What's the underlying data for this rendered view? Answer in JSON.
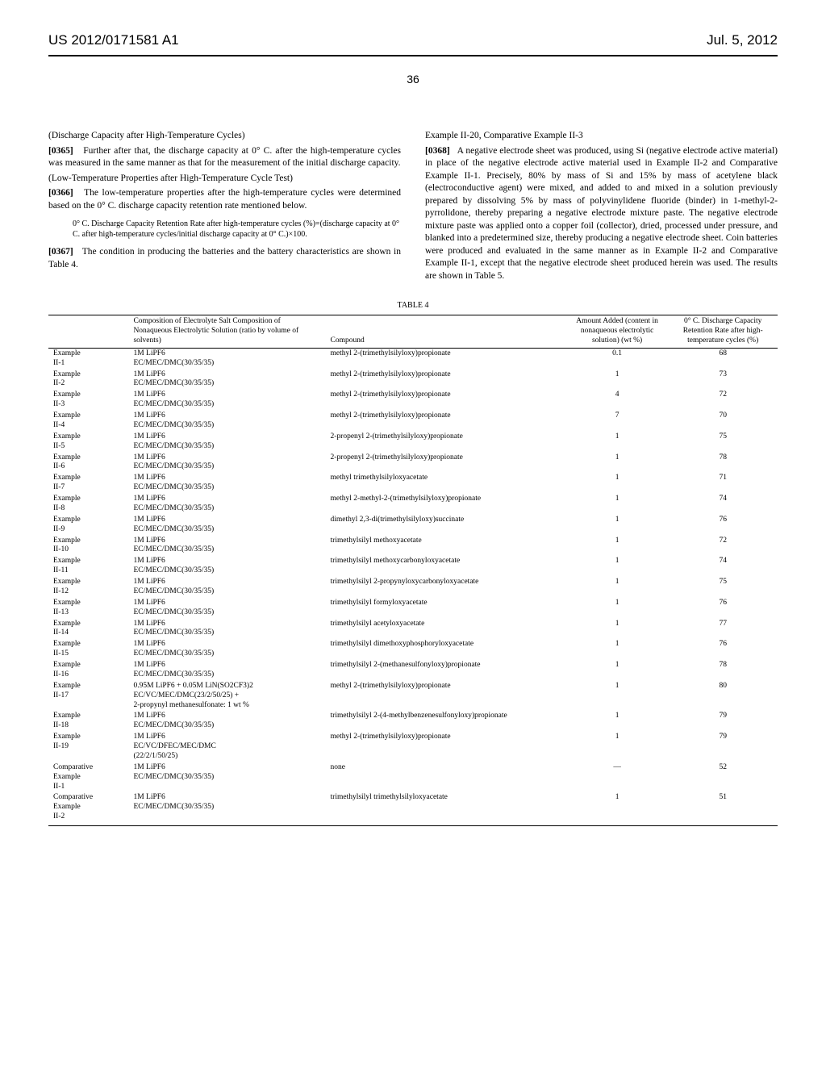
{
  "header": {
    "pub_number": "US 2012/0171581 A1",
    "pub_date": "Jul. 5, 2012",
    "page_number": "36"
  },
  "left_column": {
    "heading1": "(Discharge Capacity after High-Temperature Cycles)",
    "p0365_num": "[0365]",
    "p0365_text": "Further after that, the discharge capacity at 0° C. after the high-temperature cycles was measured in the same manner as that for the measurement of the initial discharge capacity.",
    "heading2": "(Low-Temperature Properties after High-Temperature Cycle Test)",
    "p0366_num": "[0366]",
    "p0366_text": "The low-temperature properties after the high-temperature cycles were determined based on the 0° C. discharge capacity retention rate mentioned below.",
    "formula": "0° C. Discharge Capacity Retention Rate after high-temperature cycles (%)=(discharge capacity at 0° C. after high-temperature cycles/initial discharge capacity at 0° C.)×100.",
    "p0367_num": "[0367]",
    "p0367_text": "The condition in producing the batteries and the battery characteristics are shown in Table 4."
  },
  "right_column": {
    "heading": "Example II-20, Comparative Example II-3",
    "p0368_num": "[0368]",
    "p0368_text": "A negative electrode sheet was produced, using Si (negative electrode active material) in place of the negative electrode active material used in Example II-2 and Comparative Example II-1. Precisely, 80% by mass of Si and 15% by mass of acetylene black (electroconductive agent) were mixed, and added to and mixed in a solution previously prepared by dissolving 5% by mass of polyvinylidene fluoride (binder) in 1-methyl-2-pyrrolidone, thereby preparing a negative electrode mixture paste. The negative electrode mixture paste was applied onto a copper foil (collector), dried, processed under pressure, and blanked into a predetermined size, thereby producing a negative electrode sheet. Coin batteries were produced and evaluated in the same manner as in Example II-2 and Comparative Example II-1, except that the negative electrode sheet produced herein was used. The results are shown in Table 5."
  },
  "table4": {
    "title": "TABLE 4",
    "columns": [
      "",
      "Composition of Electrolyte Salt Composition of Nonaqueous Electrolytic Solution (ratio by volume of solvents)",
      "Compound",
      "Amount Added (content in nonaqueous electrolytic solution) (wt %)",
      "0° C. Discharge Capacity Retention Rate after high-temperature cycles (%)"
    ],
    "rows": [
      {
        "label": "Example II-1",
        "comp": "1M LiPF6\nEC/MEC/DMC(30/35/35)",
        "compound": "methyl 2-(trimethylsilyloxy)propionate",
        "amount": "0.1",
        "rate": "68"
      },
      {
        "label": "Example II-2",
        "comp": "1M LiPF6\nEC/MEC/DMC(30/35/35)",
        "compound": "methyl 2-(trimethylsilyloxy)propionate",
        "amount": "1",
        "rate": "73"
      },
      {
        "label": "Example II-3",
        "comp": "1M LiPF6\nEC/MEC/DMC(30/35/35)",
        "compound": "methyl 2-(trimethylsilyloxy)propionate",
        "amount": "4",
        "rate": "72"
      },
      {
        "label": "Example II-4",
        "comp": "1M LiPF6\nEC/MEC/DMC(30/35/35)",
        "compound": "methyl 2-(trimethylsilyloxy)propionate",
        "amount": "7",
        "rate": "70"
      },
      {
        "label": "Example II-5",
        "comp": "1M LiPF6\nEC/MEC/DMC(30/35/35)",
        "compound": "2-propenyl 2-(trimethylsilyloxy)propionate",
        "amount": "1",
        "rate": "75"
      },
      {
        "label": "Example II-6",
        "comp": "1M LiPF6\nEC/MEC/DMC(30/35/35)",
        "compound": "2-propenyl 2-(trimethylsilyloxy)propionate",
        "amount": "1",
        "rate": "78"
      },
      {
        "label": "Example II-7",
        "comp": "1M LiPF6\nEC/MEC/DMC(30/35/35)",
        "compound": "methyl trimethylsilyloxyacetate",
        "amount": "1",
        "rate": "71"
      },
      {
        "label": "Example II-8",
        "comp": "1M LiPF6\nEC/MEC/DMC(30/35/35)",
        "compound": "methyl 2-methyl-2-(trimethylsilyloxy)propionate",
        "amount": "1",
        "rate": "74"
      },
      {
        "label": "Example II-9",
        "comp": "1M LiPF6\nEC/MEC/DMC(30/35/35)",
        "compound": "dimethyl 2,3-di(trimethylsilyloxy)succinate",
        "amount": "1",
        "rate": "76"
      },
      {
        "label": "Example II-10",
        "comp": "1M LiPF6\nEC/MEC/DMC(30/35/35)",
        "compound": "trimethylsilyl methoxyacetate",
        "amount": "1",
        "rate": "72"
      },
      {
        "label": "Example II-11",
        "comp": "1M LiPF6\nEC/MEC/DMC(30/35/35)",
        "compound": "trimethylsilyl methoxycarbonyloxyacetate",
        "amount": "1",
        "rate": "74"
      },
      {
        "label": "Example II-12",
        "comp": "1M LiPF6\nEC/MEC/DMC(30/35/35)",
        "compound": "trimethylsilyl 2-propynyloxycarbonyloxyacetate",
        "amount": "1",
        "rate": "75"
      },
      {
        "label": "Example II-13",
        "comp": "1M LiPF6\nEC/MEC/DMC(30/35/35)",
        "compound": "trimethylsilyl formyloxyacetate",
        "amount": "1",
        "rate": "76"
      },
      {
        "label": "Example II-14",
        "comp": "1M LiPF6\nEC/MEC/DMC(30/35/35)",
        "compound": "trimethylsilyl acetyloxyacetate",
        "amount": "1",
        "rate": "77"
      },
      {
        "label": "Example II-15",
        "comp": "1M LiPF6\nEC/MEC/DMC(30/35/35)",
        "compound": "trimethylsilyl dimethoxyphosphoryloxyacetate",
        "amount": "1",
        "rate": "76"
      },
      {
        "label": "Example II-16",
        "comp": "1M LiPF6\nEC/MEC/DMC(30/35/35)",
        "compound": "trimethylsilyl 2-(methanesulfonyloxy)propionate",
        "amount": "1",
        "rate": "78"
      },
      {
        "label": "Example II-17",
        "comp": "0.95M LiPF6 + 0.05M LiN(SO2CF3)2\nEC/VC/MEC/DMC(23/2/50/25) +\n2-propynyl methanesulfonate: 1 wt %",
        "compound": "methyl 2-(trimethylsilyloxy)propionate",
        "amount": "1",
        "rate": "80"
      },
      {
        "label": "Example II-18",
        "comp": "1M LiPF6\nEC/MEC/DMC(30/35/35)",
        "compound": "trimethylsilyl 2-(4-methylbenzenesulfonyloxy)propionate",
        "amount": "1",
        "rate": "79"
      },
      {
        "label": "Example II-19",
        "comp": "1M LiPF6\nEC/VC/DFEC/MEC/DMC\n(22/2/1/50/25)",
        "compound": "methyl 2-(trimethylsilyloxy)propionate",
        "amount": "1",
        "rate": "79"
      },
      {
        "label": "Comparative Example II-1",
        "comp": "1M LiPF6\nEC/MEC/DMC(30/35/35)",
        "compound": "none",
        "amount": "—",
        "rate": "52"
      },
      {
        "label": "Comparative Example II-2",
        "comp": "1M LiPF6\nEC/MEC/DMC(30/35/35)",
        "compound": "trimethylsilyl trimethylsilyloxyacetate",
        "amount": "1",
        "rate": "51"
      }
    ]
  }
}
